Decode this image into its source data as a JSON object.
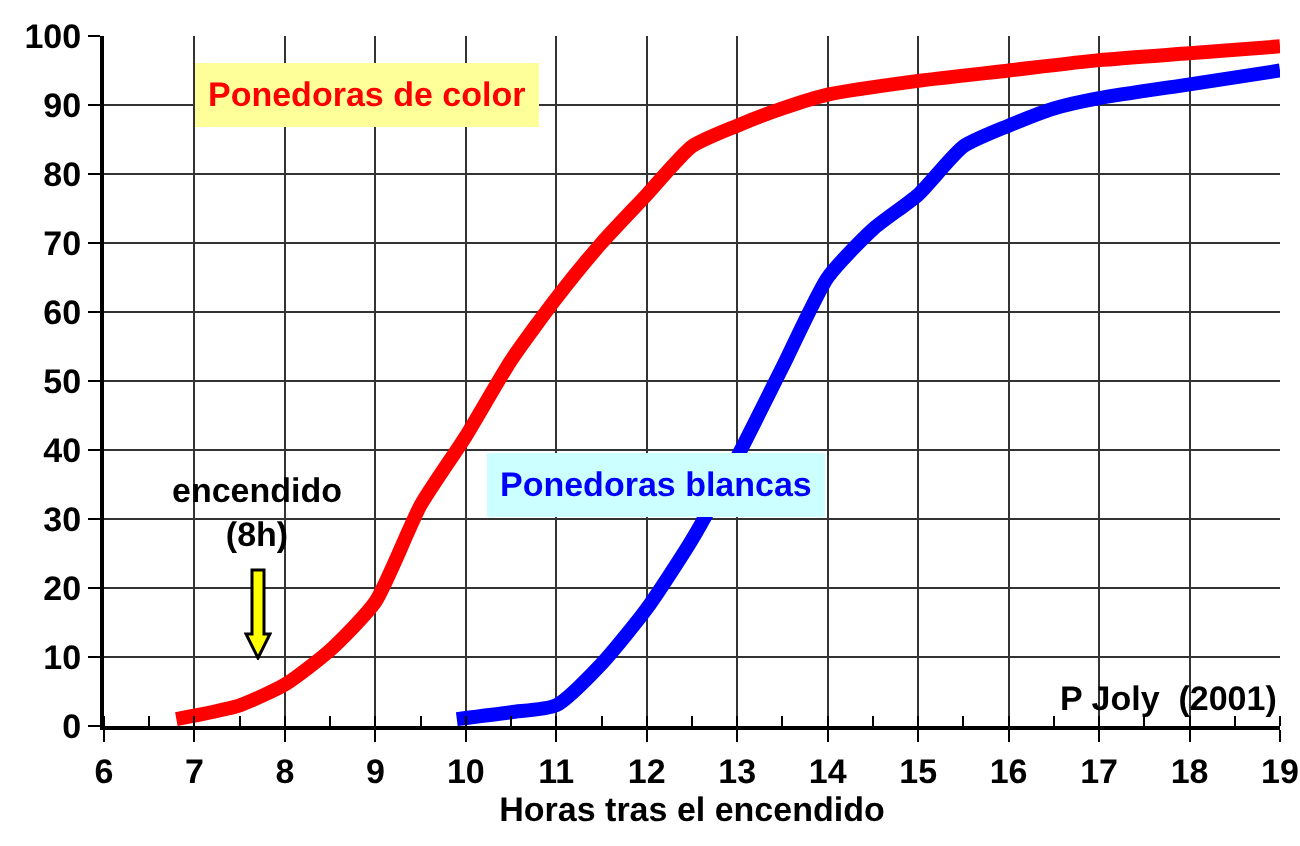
{
  "chart_data": {
    "type": "line",
    "xlabel": "Horas tras el encendido",
    "xlim": [
      6,
      19
    ],
    "xticks": [
      6,
      7,
      8,
      9,
      10,
      11,
      12,
      13,
      14,
      15,
      16,
      17,
      18,
      19
    ],
    "ylim": [
      0,
      100
    ],
    "yticks": [
      0,
      10,
      20,
      30,
      40,
      50,
      60,
      70,
      80,
      90,
      100
    ],
    "grid": true,
    "legend": false,
    "marker": "none",
    "line_style": "solid",
    "series": [
      {
        "name": "Ponedoras de color",
        "color": "#ff0000",
        "x": [
          6.8,
          7,
          7.5,
          8,
          8.5,
          9,
          9.5,
          10,
          10.5,
          11,
          11.5,
          12,
          12.5,
          13,
          13.5,
          14,
          15,
          16,
          17,
          18,
          19
        ],
        "values": [
          1,
          1.5,
          3,
          6,
          11,
          18,
          32,
          42,
          53,
          62,
          70,
          77,
          84,
          87,
          89.5,
          91.5,
          93.5,
          95,
          96.5,
          97.5,
          98.5
        ]
      },
      {
        "name": "Ponedoras blancas",
        "color": "#0000ff",
        "x": [
          9.9,
          10.5,
          11,
          11.5,
          12,
          12.5,
          13,
          13.5,
          14,
          14.5,
          15,
          15.5,
          16,
          16.5,
          17,
          18,
          19
        ],
        "values": [
          1,
          2,
          3,
          9,
          17,
          27,
          39,
          52,
          65,
          72,
          77,
          84,
          87,
          89.5,
          91,
          93,
          95
        ]
      }
    ],
    "annotations": [
      "encendido\n(8h)",
      "P Joly  (2001)"
    ]
  }
}
